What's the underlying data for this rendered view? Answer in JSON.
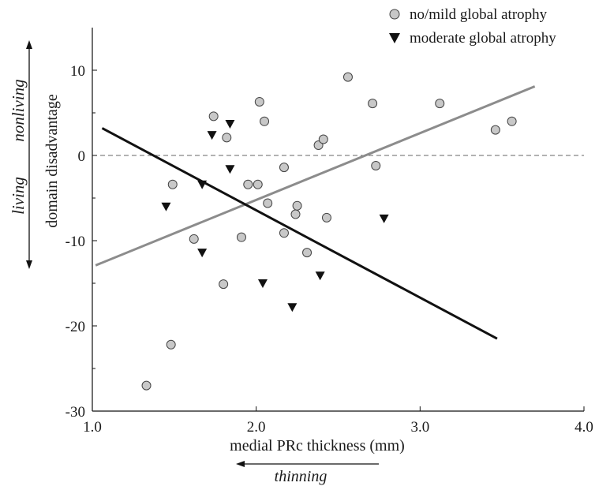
{
  "chart_data": {
    "type": "scatter",
    "xlabel": "medial PRc thickness (mm)",
    "ylabel": "domain disadvantage",
    "xlim": [
      1.0,
      4.0
    ],
    "ylim": [
      -30,
      15
    ],
    "x_ticks": [
      1.0,
      2.0,
      3.0,
      4.0
    ],
    "x_tick_labels": [
      "1.0",
      "2.0",
      "3.0",
      "4.0"
    ],
    "y_ticks": [
      -30,
      -20,
      -10,
      0,
      10
    ],
    "y_tick_labels": [
      "-30",
      "-20",
      "-10",
      "0",
      "10"
    ],
    "reference_line": {
      "y": 0,
      "style": "dashed"
    },
    "legend_position": "top-right",
    "annotations": {
      "nonliving": "nonliving",
      "living": "living",
      "thinning": "thinning"
    },
    "series": [
      {
        "name": "no/mild global atrophy",
        "marker": "circle",
        "color": "#c8c8c8",
        "stroke": "#444444",
        "points": [
          [
            1.33,
            -27
          ],
          [
            1.48,
            -22.2
          ],
          [
            1.49,
            -3.4
          ],
          [
            1.62,
            -9.8
          ],
          [
            1.74,
            4.6
          ],
          [
            1.8,
            -15.1
          ],
          [
            1.82,
            2.1
          ],
          [
            1.91,
            -9.6
          ],
          [
            1.95,
            -3.4
          ],
          [
            2.01,
            -3.4
          ],
          [
            2.02,
            6.3
          ],
          [
            2.05,
            4
          ],
          [
            2.07,
            -5.6
          ],
          [
            2.17,
            -9.1
          ],
          [
            2.17,
            -1.4
          ],
          [
            2.24,
            -6.9
          ],
          [
            2.25,
            -5.9
          ],
          [
            2.31,
            -11.4
          ],
          [
            2.38,
            1.2
          ],
          [
            2.41,
            1.9
          ],
          [
            2.43,
            -7.3
          ],
          [
            2.56,
            9.2
          ],
          [
            2.71,
            6.1
          ],
          [
            2.73,
            -1.2
          ],
          [
            3.12,
            6.1
          ],
          [
            3.46,
            3
          ],
          [
            3.56,
            4
          ]
        ]
      },
      {
        "name": "moderate global atrophy",
        "marker": "triangle-down",
        "color": "#111111",
        "points": [
          [
            1.45,
            -6
          ],
          [
            1.67,
            -3.4
          ],
          [
            1.67,
            -11.4
          ],
          [
            1.73,
            2.4
          ],
          [
            1.84,
            3.7
          ],
          [
            1.84,
            -1.6
          ],
          [
            2.04,
            -15
          ],
          [
            2.22,
            -17.8
          ],
          [
            2.39,
            -14.1
          ],
          [
            2.78,
            -7.4
          ]
        ]
      }
    ],
    "fit_lines": [
      {
        "series": "no/mild global atrophy",
        "color": "#8c8c8c",
        "x": [
          1.02,
          3.7
        ],
        "y": [
          -12.9,
          8.1
        ]
      },
      {
        "series": "moderate global atrophy",
        "color": "#111111",
        "x": [
          1.06,
          3.47
        ],
        "y": [
          3.2,
          -21.5
        ]
      }
    ]
  }
}
